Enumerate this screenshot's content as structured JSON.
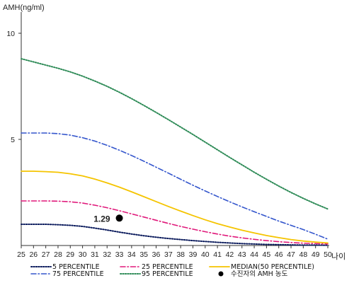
{
  "chart_data": {
    "type": "line",
    "title": "",
    "ylabel": "AMH(ng/ml)",
    "xlabel": "나이",
    "x": [
      25,
      26,
      27,
      28,
      29,
      30,
      31,
      32,
      33,
      34,
      35,
      36,
      37,
      38,
      39,
      40,
      41,
      42,
      43,
      44,
      45,
      46,
      47,
      48,
      49,
      50
    ],
    "xlim": [
      25,
      50
    ],
    "ylim": [
      0,
      11
    ],
    "yticks": [
      5,
      10
    ],
    "grid": false,
    "legend_position": "bottom",
    "series": [
      {
        "name": "5 PERCENTILE",
        "color": "#0a1a5c",
        "dash": "dotted",
        "values": [
          1.0,
          1.0,
          1.0,
          0.98,
          0.95,
          0.9,
          0.82,
          0.73,
          0.63,
          0.54,
          0.46,
          0.39,
          0.33,
          0.28,
          0.23,
          0.19,
          0.15,
          0.12,
          0.09,
          0.07,
          0.05,
          0.04,
          0.03,
          0.02,
          0.02,
          0.01
        ]
      },
      {
        "name": "25 PERCENTILE",
        "color": "#e0187a",
        "dash": "dashdot",
        "values": [
          2.1,
          2.1,
          2.1,
          2.09,
          2.06,
          2.0,
          1.9,
          1.78,
          1.64,
          1.49,
          1.34,
          1.19,
          1.04,
          0.9,
          0.77,
          0.65,
          0.54,
          0.44,
          0.36,
          0.29,
          0.23,
          0.18,
          0.14,
          0.11,
          0.09,
          0.07
        ]
      },
      {
        "name": "MEDIAN(50 PERCENTILE)",
        "color": "#f5c400",
        "dash": "solid",
        "values": [
          3.5,
          3.5,
          3.48,
          3.45,
          3.38,
          3.28,
          3.13,
          2.95,
          2.75,
          2.53,
          2.3,
          2.07,
          1.84,
          1.62,
          1.41,
          1.21,
          1.03,
          0.87,
          0.72,
          0.59,
          0.47,
          0.37,
          0.28,
          0.21,
          0.16,
          0.12
        ]
      },
      {
        "name": "75 PERCENTILE",
        "color": "#3355cc",
        "dash": "dashdot",
        "values": [
          5.3,
          5.3,
          5.3,
          5.27,
          5.2,
          5.08,
          4.92,
          4.72,
          4.49,
          4.24,
          3.97,
          3.69,
          3.41,
          3.12,
          2.84,
          2.57,
          2.31,
          2.06,
          1.82,
          1.59,
          1.37,
          1.15,
          0.95,
          0.75,
          0.53,
          0.3
        ]
      },
      {
        "name": "95 PERCENTILE",
        "color": "#2e8b57",
        "dash": "dotted",
        "values": [
          8.8,
          8.65,
          8.5,
          8.35,
          8.18,
          7.98,
          7.75,
          7.5,
          7.22,
          6.92,
          6.6,
          6.27,
          5.93,
          5.58,
          5.23,
          4.87,
          4.51,
          4.15,
          3.8,
          3.45,
          3.12,
          2.8,
          2.5,
          2.22,
          1.96,
          1.72
        ]
      }
    ],
    "points": [
      {
        "name": "수진자의 AMH 농도",
        "x": 33,
        "y": 1.29,
        "label": "1.29",
        "color": "#000000"
      }
    ]
  }
}
